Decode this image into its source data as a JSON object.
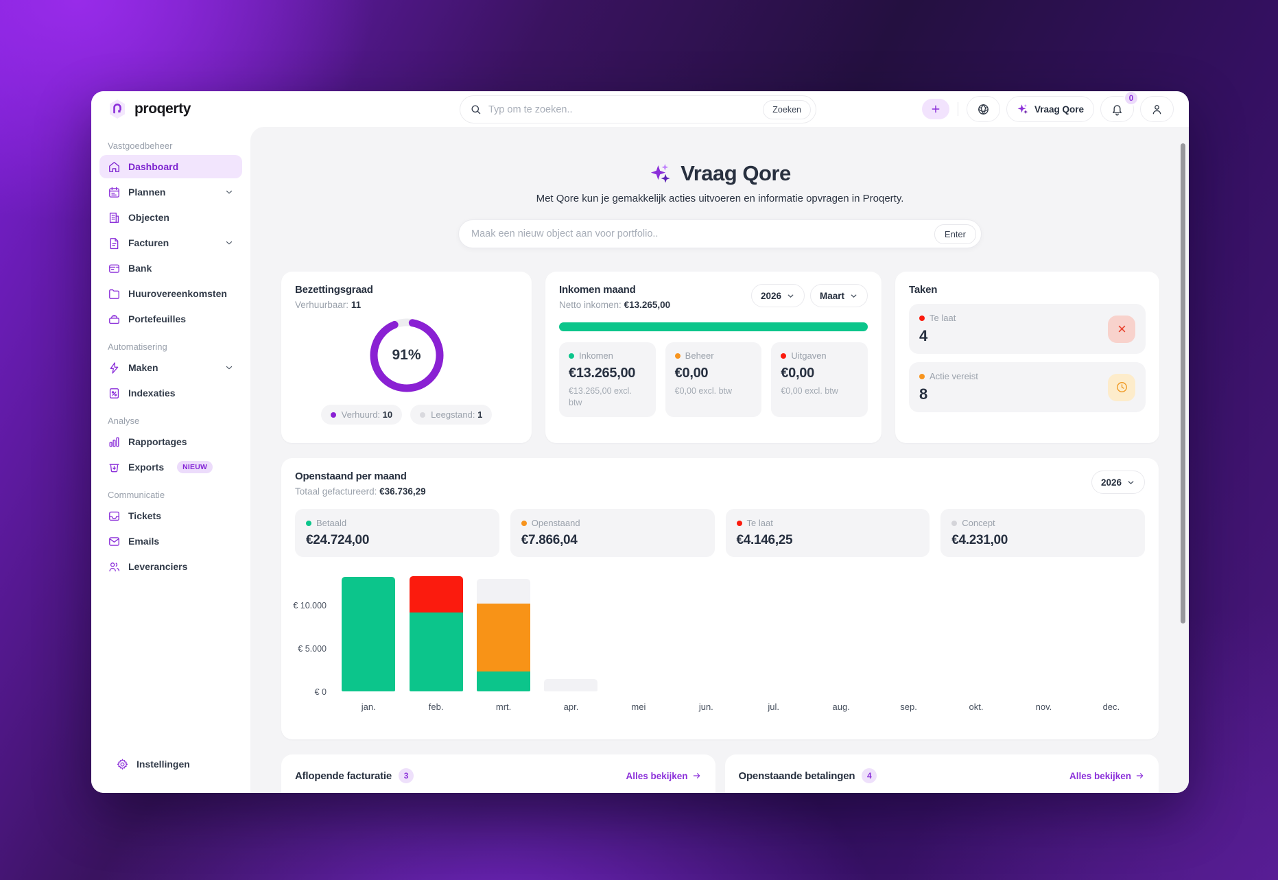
{
  "brand": {
    "name": "proqerty"
  },
  "topbar": {
    "search_placeholder": "Typ om te zoeken..",
    "search_button": "Zoeken",
    "ask_qore_label": "Vraag Qore",
    "notification_count": "0"
  },
  "sidebar": {
    "sections": [
      {
        "label": "Vastgoedbeheer",
        "items": [
          {
            "icon": "home",
            "label": "Dashboard",
            "active": true
          },
          {
            "icon": "calendar",
            "label": "Plannen",
            "chevron": true
          },
          {
            "icon": "building",
            "label": "Objecten"
          },
          {
            "icon": "invoice",
            "label": "Facturen",
            "chevron": true
          },
          {
            "icon": "bank",
            "label": "Bank"
          },
          {
            "icon": "folder",
            "label": "Huurovereenkomsten"
          },
          {
            "icon": "portfolio",
            "label": "Portefeuilles"
          }
        ]
      },
      {
        "label": "Automatisering",
        "items": [
          {
            "icon": "lightning",
            "label": "Maken",
            "chevron": true
          },
          {
            "icon": "indexation",
            "label": "Indexaties"
          }
        ]
      },
      {
        "label": "Analyse",
        "items": [
          {
            "icon": "chart",
            "label": "Rapportages"
          },
          {
            "icon": "export",
            "label": "Exports",
            "badge": "NIEUW"
          }
        ]
      },
      {
        "label": "Communicatie",
        "items": [
          {
            "icon": "inbox",
            "label": "Tickets"
          },
          {
            "icon": "mail",
            "label": "Emails"
          },
          {
            "icon": "users",
            "label": "Leveranciers"
          }
        ]
      }
    ],
    "footer_item": {
      "icon": "gear",
      "label": "Instellingen"
    }
  },
  "hero": {
    "title": "Vraag Qore",
    "subtitle": "Met Qore kun je gemakkelijk acties uitvoeren en informatie opvragen in Proqerty.",
    "input_placeholder": "Maak een nieuw object aan voor portfolio..",
    "enter_button": "Enter"
  },
  "occupancy": {
    "title": "Bezettingsgraad",
    "subtitle_label": "Verhuurbaar:",
    "subtitle_value": "11",
    "percent_label": "91%",
    "percent_value": 91,
    "ring_color": "#8a21d3",
    "track_color": "#ededf0",
    "legend": [
      {
        "label": "Verhuurd:",
        "value": "10",
        "color": "#8a21d3"
      },
      {
        "label": "Leegstand:",
        "value": "1",
        "color": "#d9d9de"
      }
    ]
  },
  "income": {
    "title": "Inkomen maand",
    "subtitle_label": "Netto inkomen:",
    "subtitle_value": "€13.265,00",
    "year": "2026",
    "month": "Maart",
    "bar_color": "#0cc58b",
    "stats": [
      {
        "label": "Inkomen",
        "value": "€13.265,00",
        "sub": "€13.265,00 excl. btw",
        "color": "#0cc58b"
      },
      {
        "label": "Beheer",
        "value": "€0,00",
        "sub": "€0,00 excl. btw",
        "color": "#f7941e"
      },
      {
        "label": "Uitgaven",
        "value": "€0,00",
        "sub": "€0,00 excl. btw",
        "color": "#fb1b0e"
      }
    ]
  },
  "tasks": {
    "title": "Taken",
    "items": [
      {
        "label": "Te laat",
        "value": "4",
        "dot": "#fb1b0e",
        "icon": "x",
        "icon_bg": "#f8d2cc",
        "icon_color": "#e8432f"
      },
      {
        "label": "Actie vereist",
        "value": "8",
        "dot": "#f7941e",
        "icon": "clock",
        "icon_bg": "#fdeccb",
        "icon_color": "#f09c28"
      }
    ]
  },
  "outstanding": {
    "title": "Openstaand per maand",
    "subtitle_label": "Totaal gefactureerd:",
    "subtitle_value": "€36.736,29",
    "year": "2026",
    "stats": [
      {
        "label": "Betaald",
        "value": "€24.724,00",
        "color": "#0cc58b"
      },
      {
        "label": "Openstaand",
        "value": "€7.866,04",
        "color": "#f7941e"
      },
      {
        "label": "Te laat",
        "value": "€4.146,25",
        "color": "#fb1b0e"
      },
      {
        "label": "Concept",
        "value": "€4.231,00",
        "color": "#d4d4d9"
      }
    ]
  },
  "chart_data": {
    "type": "bar",
    "stacked": true,
    "title": "Openstaand per maand",
    "categories": [
      "jan.",
      "feb.",
      "mrt.",
      "apr.",
      "mei",
      "jun.",
      "jul.",
      "aug.",
      "sep.",
      "okt.",
      "nov.",
      "dec."
    ],
    "series": [
      {
        "name": "Betaald",
        "color": "#0cc58b",
        "values": [
          13265,
          9159,
          2300,
          0,
          0,
          0,
          0,
          0,
          0,
          0,
          0,
          0
        ]
      },
      {
        "name": "Openstaand",
        "color": "#f89317",
        "values": [
          0,
          0,
          7866,
          0,
          0,
          0,
          0,
          0,
          0,
          0,
          0,
          0
        ]
      },
      {
        "name": "Te laat",
        "color": "#fb1b0e",
        "values": [
          0,
          4146,
          0,
          0,
          0,
          0,
          0,
          0,
          0,
          0,
          0,
          0
        ]
      },
      {
        "name": "Concept",
        "color": "#f2f2f5",
        "values": [
          0,
          0,
          2831,
          1400,
          0,
          0,
          0,
          0,
          0,
          0,
          0,
          0
        ]
      }
    ],
    "yticks": [
      {
        "label": "€ 0",
        "value": 0
      },
      {
        "label": "€ 5.000",
        "value": 5000
      },
      {
        "label": "€ 10.000",
        "value": 10000
      }
    ],
    "ymax": 13500,
    "xlabel": "",
    "ylabel": "",
    "grid": false,
    "legend_position": "none"
  },
  "bottom_cards": [
    {
      "title": "Aflopende facturatie",
      "count": "3",
      "link": "Alles bekijken"
    },
    {
      "title": "Openstaande betalingen",
      "count": "4",
      "link": "Alles bekijken"
    }
  ]
}
